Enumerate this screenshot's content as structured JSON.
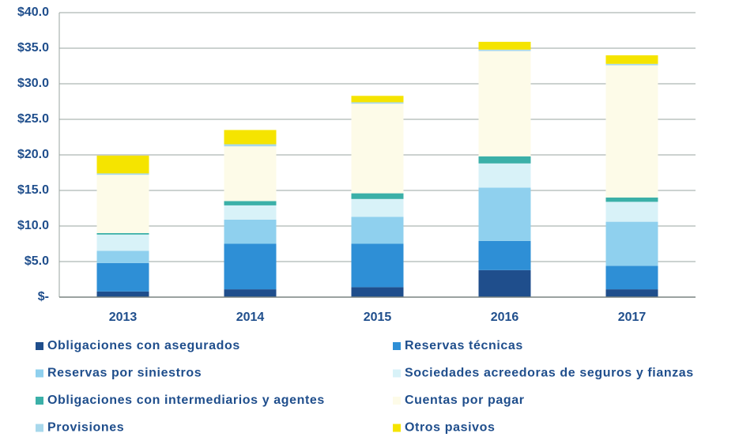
{
  "chart_data": {
    "type": "stacked_bar",
    "categories": [
      "2013",
      "2014",
      "2015",
      "2016",
      "2017"
    ],
    "series": [
      {
        "name": "Obligaciones con asegurados",
        "color": "#1f4e8c",
        "values": [
          0.8,
          1.1,
          1.4,
          3.8,
          1.1
        ]
      },
      {
        "name": "Reservas técnicas",
        "color": "#2e8fd6",
        "values": [
          4.0,
          6.4,
          6.1,
          4.1,
          3.3
        ]
      },
      {
        "name": "Reservas por siniestros",
        "color": "#8fd0ee",
        "values": [
          1.7,
          3.4,
          3.8,
          7.5,
          6.2
        ]
      },
      {
        "name": "Sociedades acreedoras de seguros y fianzas",
        "color": "#d8f2f8",
        "values": [
          2.3,
          2.0,
          2.5,
          3.4,
          2.8
        ]
      },
      {
        "name": "Obligaciones con intermediarios y agentes",
        "color": "#3bb0a8",
        "values": [
          0.2,
          0.6,
          0.8,
          1.0,
          0.6
        ]
      },
      {
        "name": "Cuentas por pagar",
        "color": "#fdfbe8",
        "values": [
          8.2,
          7.7,
          12.6,
          14.8,
          18.6
        ]
      },
      {
        "name": "Provisiones",
        "color": "#a8d8ec",
        "values": [
          0.2,
          0.3,
          0.2,
          0.2,
          0.2
        ]
      },
      {
        "name": "Otros pasivos",
        "color": "#f5e400",
        "values": [
          2.5,
          2.0,
          0.9,
          1.1,
          1.2
        ]
      }
    ],
    "ylim": [
      0,
      40
    ],
    "yticks": [
      {
        "value": 0,
        "label": "$-"
      },
      {
        "value": 5,
        "label": "$5.0"
      },
      {
        "value": 10,
        "label": "$10.0"
      },
      {
        "value": 15,
        "label": "$15.0"
      },
      {
        "value": 20,
        "label": "$20.0"
      },
      {
        "value": 25,
        "label": "$25.0"
      },
      {
        "value": 30,
        "label": "$30.0"
      },
      {
        "value": 35,
        "label": "$35.0"
      },
      {
        "value": 40,
        "label": "$40.0"
      }
    ],
    "grid": true,
    "legend": "bottom"
  }
}
